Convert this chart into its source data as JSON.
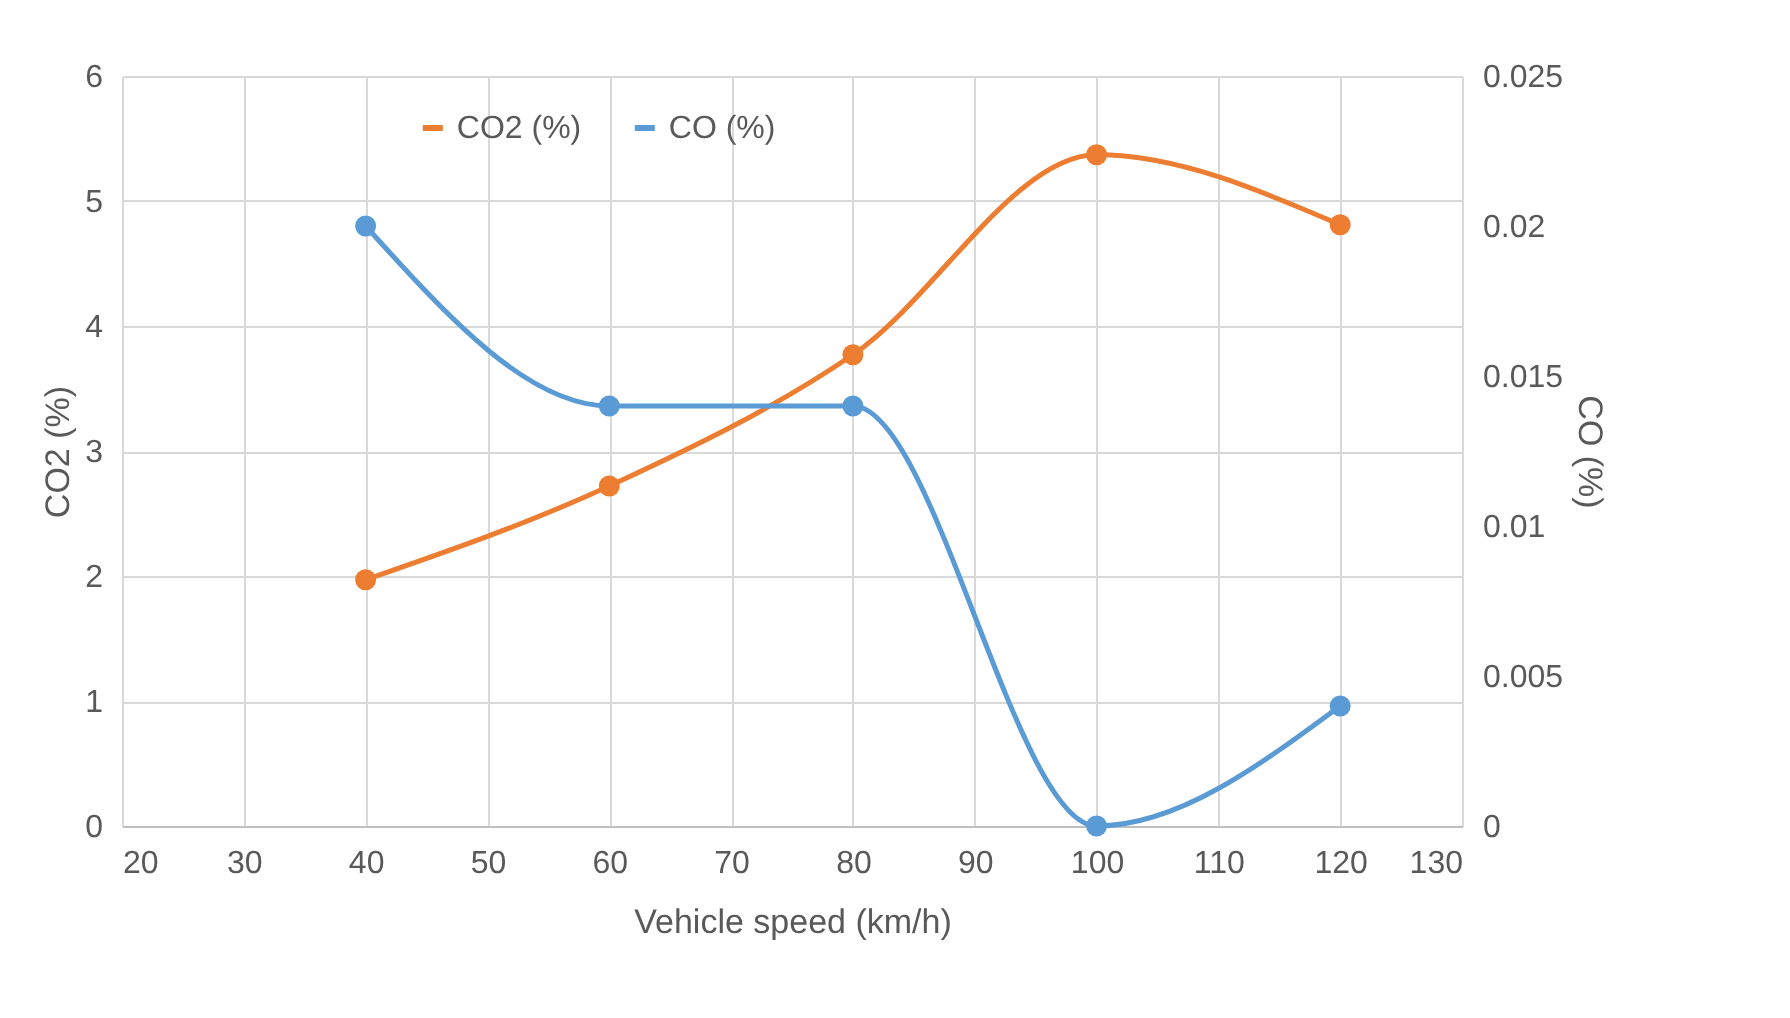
{
  "chart_data": {
    "type": "line",
    "xlabel": "Vehicle speed (km/h)",
    "ylabel": "CO2 (%)",
    "y2label": "CO (%)",
    "x": [
      40,
      60,
      80,
      100,
      120
    ],
    "series": [
      {
        "name": "CO2 (%)",
        "color": "#ed7d31",
        "values": [
          1.97,
          2.72,
          3.77,
          5.37,
          4.81
        ]
      },
      {
        "name": "CO (%)",
        "color": "#5b9bd5",
        "axis": "y2",
        "values": [
          0.02,
          0.014,
          0.014,
          0,
          0.004
        ]
      }
    ],
    "xlim": [
      20,
      130
    ],
    "xticks": [
      20,
      30,
      40,
      50,
      60,
      70,
      80,
      90,
      100,
      110,
      120,
      130
    ],
    "ylim": [
      0,
      6
    ],
    "yticks": [
      0,
      1,
      2,
      3,
      4,
      5,
      6
    ],
    "y2lim": [
      0,
      0.025
    ],
    "y2ticks": [
      0,
      0.005,
      0.01,
      0.015,
      0.02,
      0.025
    ],
    "grid": true,
    "legend": "top",
    "marker": "circle",
    "line_style": "solid"
  }
}
